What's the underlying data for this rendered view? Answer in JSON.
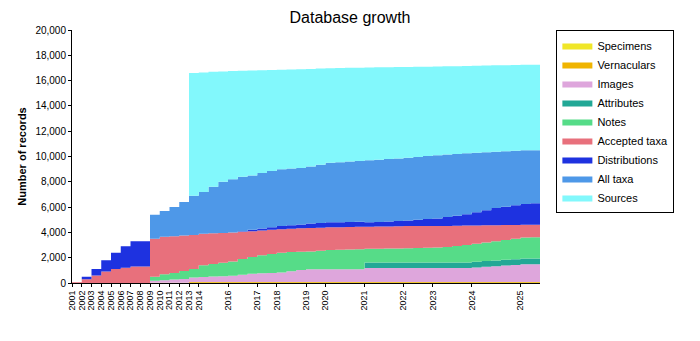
{
  "chart_data": {
    "type": "area",
    "title": "Database growth",
    "y_label": "Number of records",
    "stacked": true,
    "grid": false,
    "legend": "top right",
    "ylim": [
      0,
      20000
    ],
    "yticks": [
      0,
      {
        "value": 2000,
        "label": "2,000"
      },
      {
        "value": 4000,
        "label": "4,000"
      },
      {
        "value": 6000,
        "label": "6,000"
      },
      {
        "value": 8000,
        "label": "8,000"
      },
      {
        "value": 10000,
        "label": "10,000"
      },
      {
        "value": 12000,
        "label": "12,000"
      },
      {
        "value": 14000,
        "label": "14,000"
      },
      {
        "value": 16000,
        "label": "16,000"
      },
      {
        "value": 18000,
        "label": "18,000"
      },
      {
        "value": 20000,
        "label": "20,000"
      }
    ],
    "categories": [
      "2001",
      "2002",
      "2003",
      "2004",
      "2005",
      "2006",
      "2007",
      "2008",
      "2009",
      "2010",
      "2011",
      "2012",
      "2013",
      "2014",
      null,
      null,
      "2016",
      null,
      null,
      "2017",
      null,
      "2018",
      null,
      null,
      "2019",
      null,
      "2020",
      null,
      null,
      null,
      "2021",
      null,
      null,
      null,
      "2022",
      null,
      null,
      "2023",
      null,
      null,
      null,
      "2024",
      null,
      null,
      null,
      null,
      "2025",
      null,
      null
    ],
    "series": [
      {
        "name": "Specimens",
        "color": "#f0e628",
        "values": [
          0,
          0,
          0,
          0,
          0,
          0,
          0,
          0,
          20,
          20,
          20,
          20,
          20,
          20,
          20,
          20,
          20,
          20,
          20,
          20,
          20,
          20,
          20,
          20,
          20,
          20,
          20,
          20,
          20,
          20,
          20,
          20,
          20,
          20,
          20,
          20,
          20,
          20,
          20,
          20,
          20,
          20,
          20,
          20,
          20,
          20,
          20,
          20,
          20
        ]
      },
      {
        "name": "Vernaculars",
        "color": "#f0b400",
        "values": [
          0,
          0,
          0,
          0,
          0,
          0,
          0,
          0,
          0,
          0,
          0,
          0,
          60,
          60,
          60,
          60,
          60,
          60,
          60,
          60,
          60,
          60,
          60,
          60,
          60,
          60,
          60,
          60,
          60,
          60,
          60,
          60,
          60,
          60,
          60,
          60,
          60,
          60,
          60,
          60,
          60,
          60,
          60,
          60,
          60,
          60,
          60,
          60,
          60
        ]
      },
      {
        "name": "Images",
        "color": "#dea6dc",
        "values": [
          0,
          0,
          0,
          0,
          0,
          0,
          0,
          0,
          150,
          200,
          250,
          300,
          350,
          400,
          430,
          460,
          500,
          580,
          650,
          700,
          720,
          750,
          850,
          950,
          1000,
          1000,
          1000,
          1000,
          1000,
          1000,
          1100,
          1100,
          1100,
          1100,
          1100,
          1100,
          1100,
          1100,
          1100,
          1100,
          1100,
          1150,
          1200,
          1250,
          1300,
          1350,
          1400,
          1400,
          1420
        ]
      },
      {
        "name": "Attributes",
        "color": "#22a896",
        "values": [
          0,
          0,
          0,
          0,
          0,
          0,
          0,
          0,
          0,
          0,
          0,
          0,
          0,
          0,
          0,
          0,
          0,
          0,
          0,
          0,
          0,
          0,
          0,
          0,
          0,
          0,
          0,
          0,
          0,
          0,
          450,
          450,
          450,
          450,
          450,
          450,
          450,
          450,
          450,
          450,
          450,
          450,
          450,
          450,
          450,
          450,
          450,
          450,
          450
        ]
      },
      {
        "name": "Notes",
        "color": "#56dc88",
        "values": [
          0,
          0,
          0,
          0,
          0,
          0,
          0,
          0,
          330,
          480,
          530,
          630,
          670,
          920,
          990,
          1060,
          1120,
          1240,
          1320,
          1420,
          1500,
          1570,
          1520,
          1450,
          1420,
          1470,
          1520,
          1540,
          1570,
          1590,
          1070,
          1080,
          1090,
          1100,
          1120,
          1140,
          1160,
          1170,
          1220,
          1290,
          1370,
          1420,
          1470,
          1520,
          1570,
          1620,
          1670,
          1690,
          1700
        ]
      },
      {
        "name": "Accepted taxa",
        "color": "#e8707c",
        "values": [
          50,
          300,
          600,
          900,
          1100,
          1200,
          1300,
          1300,
          3000,
          2950,
          2900,
          2800,
          2700,
          2500,
          2430,
          2360,
          2300,
          2150,
          2050,
          1950,
          1900,
          1850,
          1830,
          1840,
          1850,
          1820,
          1800,
          1790,
          1770,
          1770,
          1750,
          1750,
          1750,
          1750,
          1750,
          1730,
          1710,
          1700,
          1660,
          1600,
          1540,
          1450,
          1360,
          1270,
          1180,
          1090,
          1000,
          980,
          950
        ]
      },
      {
        "name": "Distributions",
        "color": "#1e32e0",
        "values": [
          0,
          200,
          500,
          900,
          1300,
          1700,
          2000,
          2000,
          0,
          0,
          0,
          0,
          0,
          0,
          0,
          0,
          0,
          50,
          100,
          150,
          200,
          250,
          280,
          300,
          350,
          370,
          400,
          400,
          400,
          400,
          350,
          370,
          390,
          420,
          450,
          500,
          550,
          600,
          700,
          800,
          900,
          1050,
          1200,
          1350,
          1450,
          1550,
          1650,
          1700,
          1700
        ]
      },
      {
        "name": "All taxa",
        "color": "#4e98e8",
        "values": [
          0,
          0,
          0,
          0,
          0,
          0,
          0,
          0,
          1900,
          2050,
          2300,
          2650,
          3100,
          3300,
          3670,
          4040,
          4200,
          4300,
          4300,
          4400,
          4450,
          4500,
          4490,
          4480,
          4500,
          4610,
          4700,
          4740,
          4780,
          4810,
          4900,
          4920,
          4940,
          4950,
          4950,
          4970,
          4980,
          5000,
          4940,
          4880,
          4810,
          4700,
          4580,
          4460,
          4390,
          4320,
          4250,
          4200,
          4200
        ]
      },
      {
        "name": "Sources",
        "color": "#82f8fc",
        "values": [
          0,
          0,
          0,
          0,
          0,
          0,
          0,
          0,
          0,
          0,
          0,
          0,
          9700,
          9450,
          9100,
          8720,
          8550,
          8380,
          8300,
          8120,
          7990,
          7860,
          7830,
          7800,
          7720,
          7600,
          7480,
          7450,
          7410,
          7370,
          7340,
          7300,
          7260,
          7220,
          7180,
          7120,
          7070,
          7020,
          6980,
          6940,
          6910,
          6880,
          6860,
          6830,
          6800,
          6780,
          6750,
          6750,
          6750
        ]
      }
    ]
  }
}
